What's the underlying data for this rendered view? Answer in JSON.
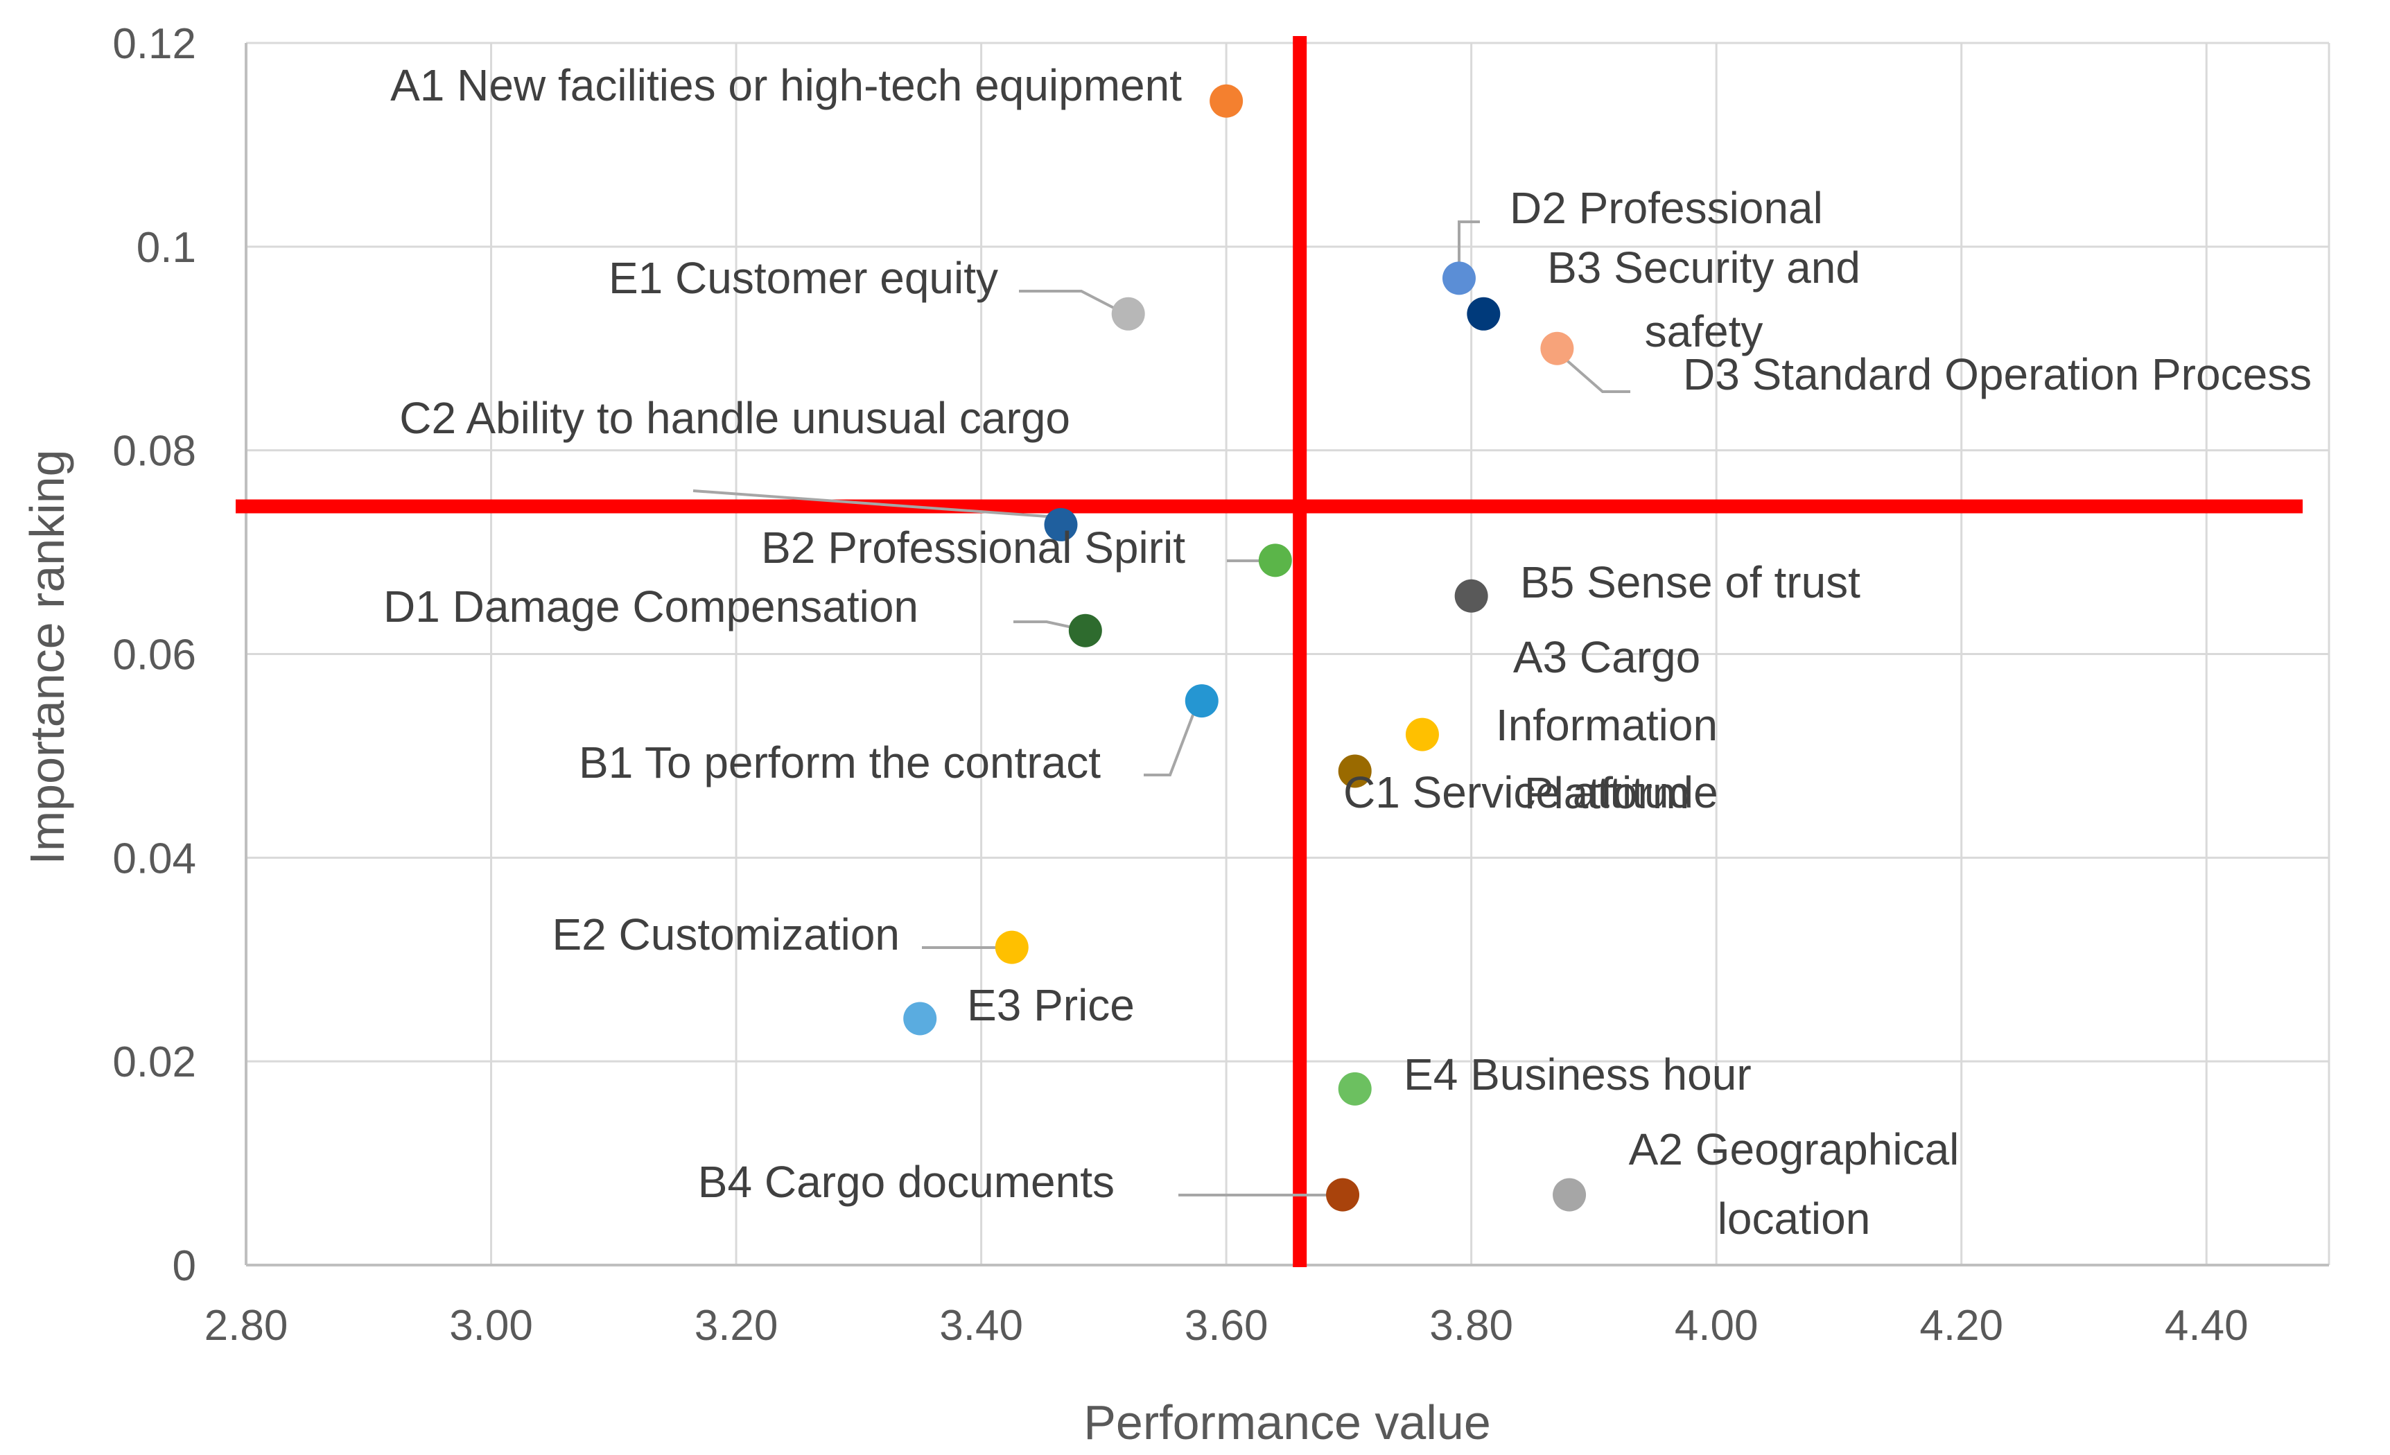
{
  "chart_data": {
    "type": "scatter",
    "title": "",
    "xlabel": "Performance value",
    "ylabel": "Importance ranking",
    "xlim": [
      2.8,
      4.5
    ],
    "ylim": [
      0,
      0.12
    ],
    "x_ticks": [
      "2.80",
      "3.00",
      "3.20",
      "3.40",
      "3.60",
      "3.80",
      "4.00",
      "4.20",
      "4.40"
    ],
    "y_ticks": [
      "0",
      "0.02",
      "0.04",
      "0.06",
      "0.08",
      "0.1",
      "0.12"
    ],
    "grid": true,
    "reference_lines": {
      "x": 3.66,
      "y": 0.0745,
      "color": "#ff0000"
    },
    "points": [
      {
        "label": "A1 New facilities or high-tech equipment",
        "x": 3.6,
        "y": 0.1143,
        "color": "#f4802f"
      },
      {
        "label": "A2 Geographical location",
        "x": 3.88,
        "y": 0.0069,
        "color": "#a6a6a6"
      },
      {
        "label": "A3 Cargo Information Platform",
        "x": 3.76,
        "y": 0.0521,
        "color": "#ffc000"
      },
      {
        "label": "B1 To perform the contract",
        "x": 3.58,
        "y": 0.0554,
        "color": "#2596d2"
      },
      {
        "label": "B2 Professional Spirit",
        "x": 3.64,
        "y": 0.0692,
        "color": "#5bb549"
      },
      {
        "label": "B3 Security and safety",
        "x": 3.81,
        "y": 0.0934,
        "color": "#003a7b"
      },
      {
        "label": "B4 Cargo documents",
        "x": 3.695,
        "y": 0.0069,
        "color": "#a9430c"
      },
      {
        "label": "B5 Sense of trust",
        "x": 3.8,
        "y": 0.0657,
        "color": "#595959"
      },
      {
        "label": "C1 Service attitude",
        "x": 3.705,
        "y": 0.0485,
        "color": "#9a6a00"
      },
      {
        "label": "C2 Ability to handle unusual cargo",
        "x": 3.465,
        "y": 0.0727,
        "color": "#1f5f9e"
      },
      {
        "label": "D1 Damage Compensation",
        "x": 3.485,
        "y": 0.0623,
        "color": "#2e6b2e"
      },
      {
        "label": "D2 Professional",
        "x": 3.79,
        "y": 0.0969,
        "color": "#5b8ed6"
      },
      {
        "label": "D3 Standard Operation Process",
        "x": 3.87,
        "y": 0.09,
        "color": "#f7a37a"
      },
      {
        "label": "E1 Customer equity",
        "x": 3.52,
        "y": 0.0934,
        "color": "#b7b7b7"
      },
      {
        "label": "E2 Customization",
        "x": 3.425,
        "y": 0.0312,
        "color": "#ffc000"
      },
      {
        "label": "E3 Price",
        "x": 3.35,
        "y": 0.0242,
        "color": "#5aace0"
      },
      {
        "label": "E4 Business hour",
        "x": 3.705,
        "y": 0.0173,
        "color": "#6cc060"
      }
    ]
  }
}
